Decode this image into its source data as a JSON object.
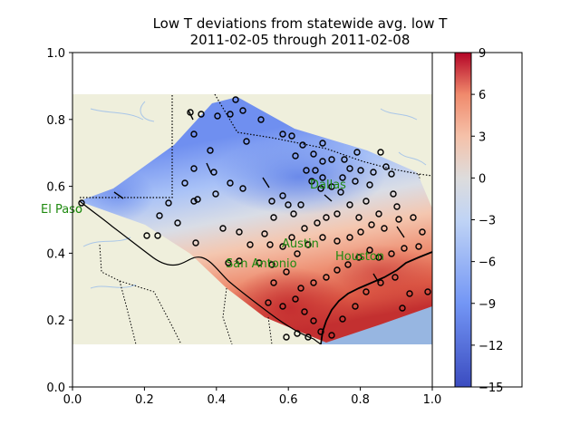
{
  "title": {
    "line1": "Low T deviations from statewide avg. low T",
    "line2": "2011-02-05 through 2011-02-08"
  },
  "axes": {
    "x_ticks": [
      "0.0",
      "0.2",
      "0.4",
      "0.6",
      "0.8",
      "1.0"
    ],
    "y_ticks": [
      "0.0",
      "0.2",
      "0.4",
      "0.6",
      "0.8",
      "1.0"
    ],
    "x_range": [
      0,
      1
    ],
    "y_range": [
      0,
      1
    ]
  },
  "colorbar": {
    "ticks": [
      "9",
      "6",
      "3",
      "0",
      "−3",
      "−6",
      "−9",
      "−12",
      "−15"
    ],
    "range": [
      -15,
      9
    ],
    "colormap": "coolwarm"
  },
  "cities": [
    {
      "name": "El Paso"
    },
    {
      "name": "Dallas"
    },
    {
      "name": "Austin"
    },
    {
      "name": "San Antonio"
    },
    {
      "name": "Houston"
    }
  ],
  "colors": {
    "land": "#efefdc",
    "gulf": "#97b6e1",
    "city_label": "#1f8a10",
    "river": "#a9c6e8"
  }
}
